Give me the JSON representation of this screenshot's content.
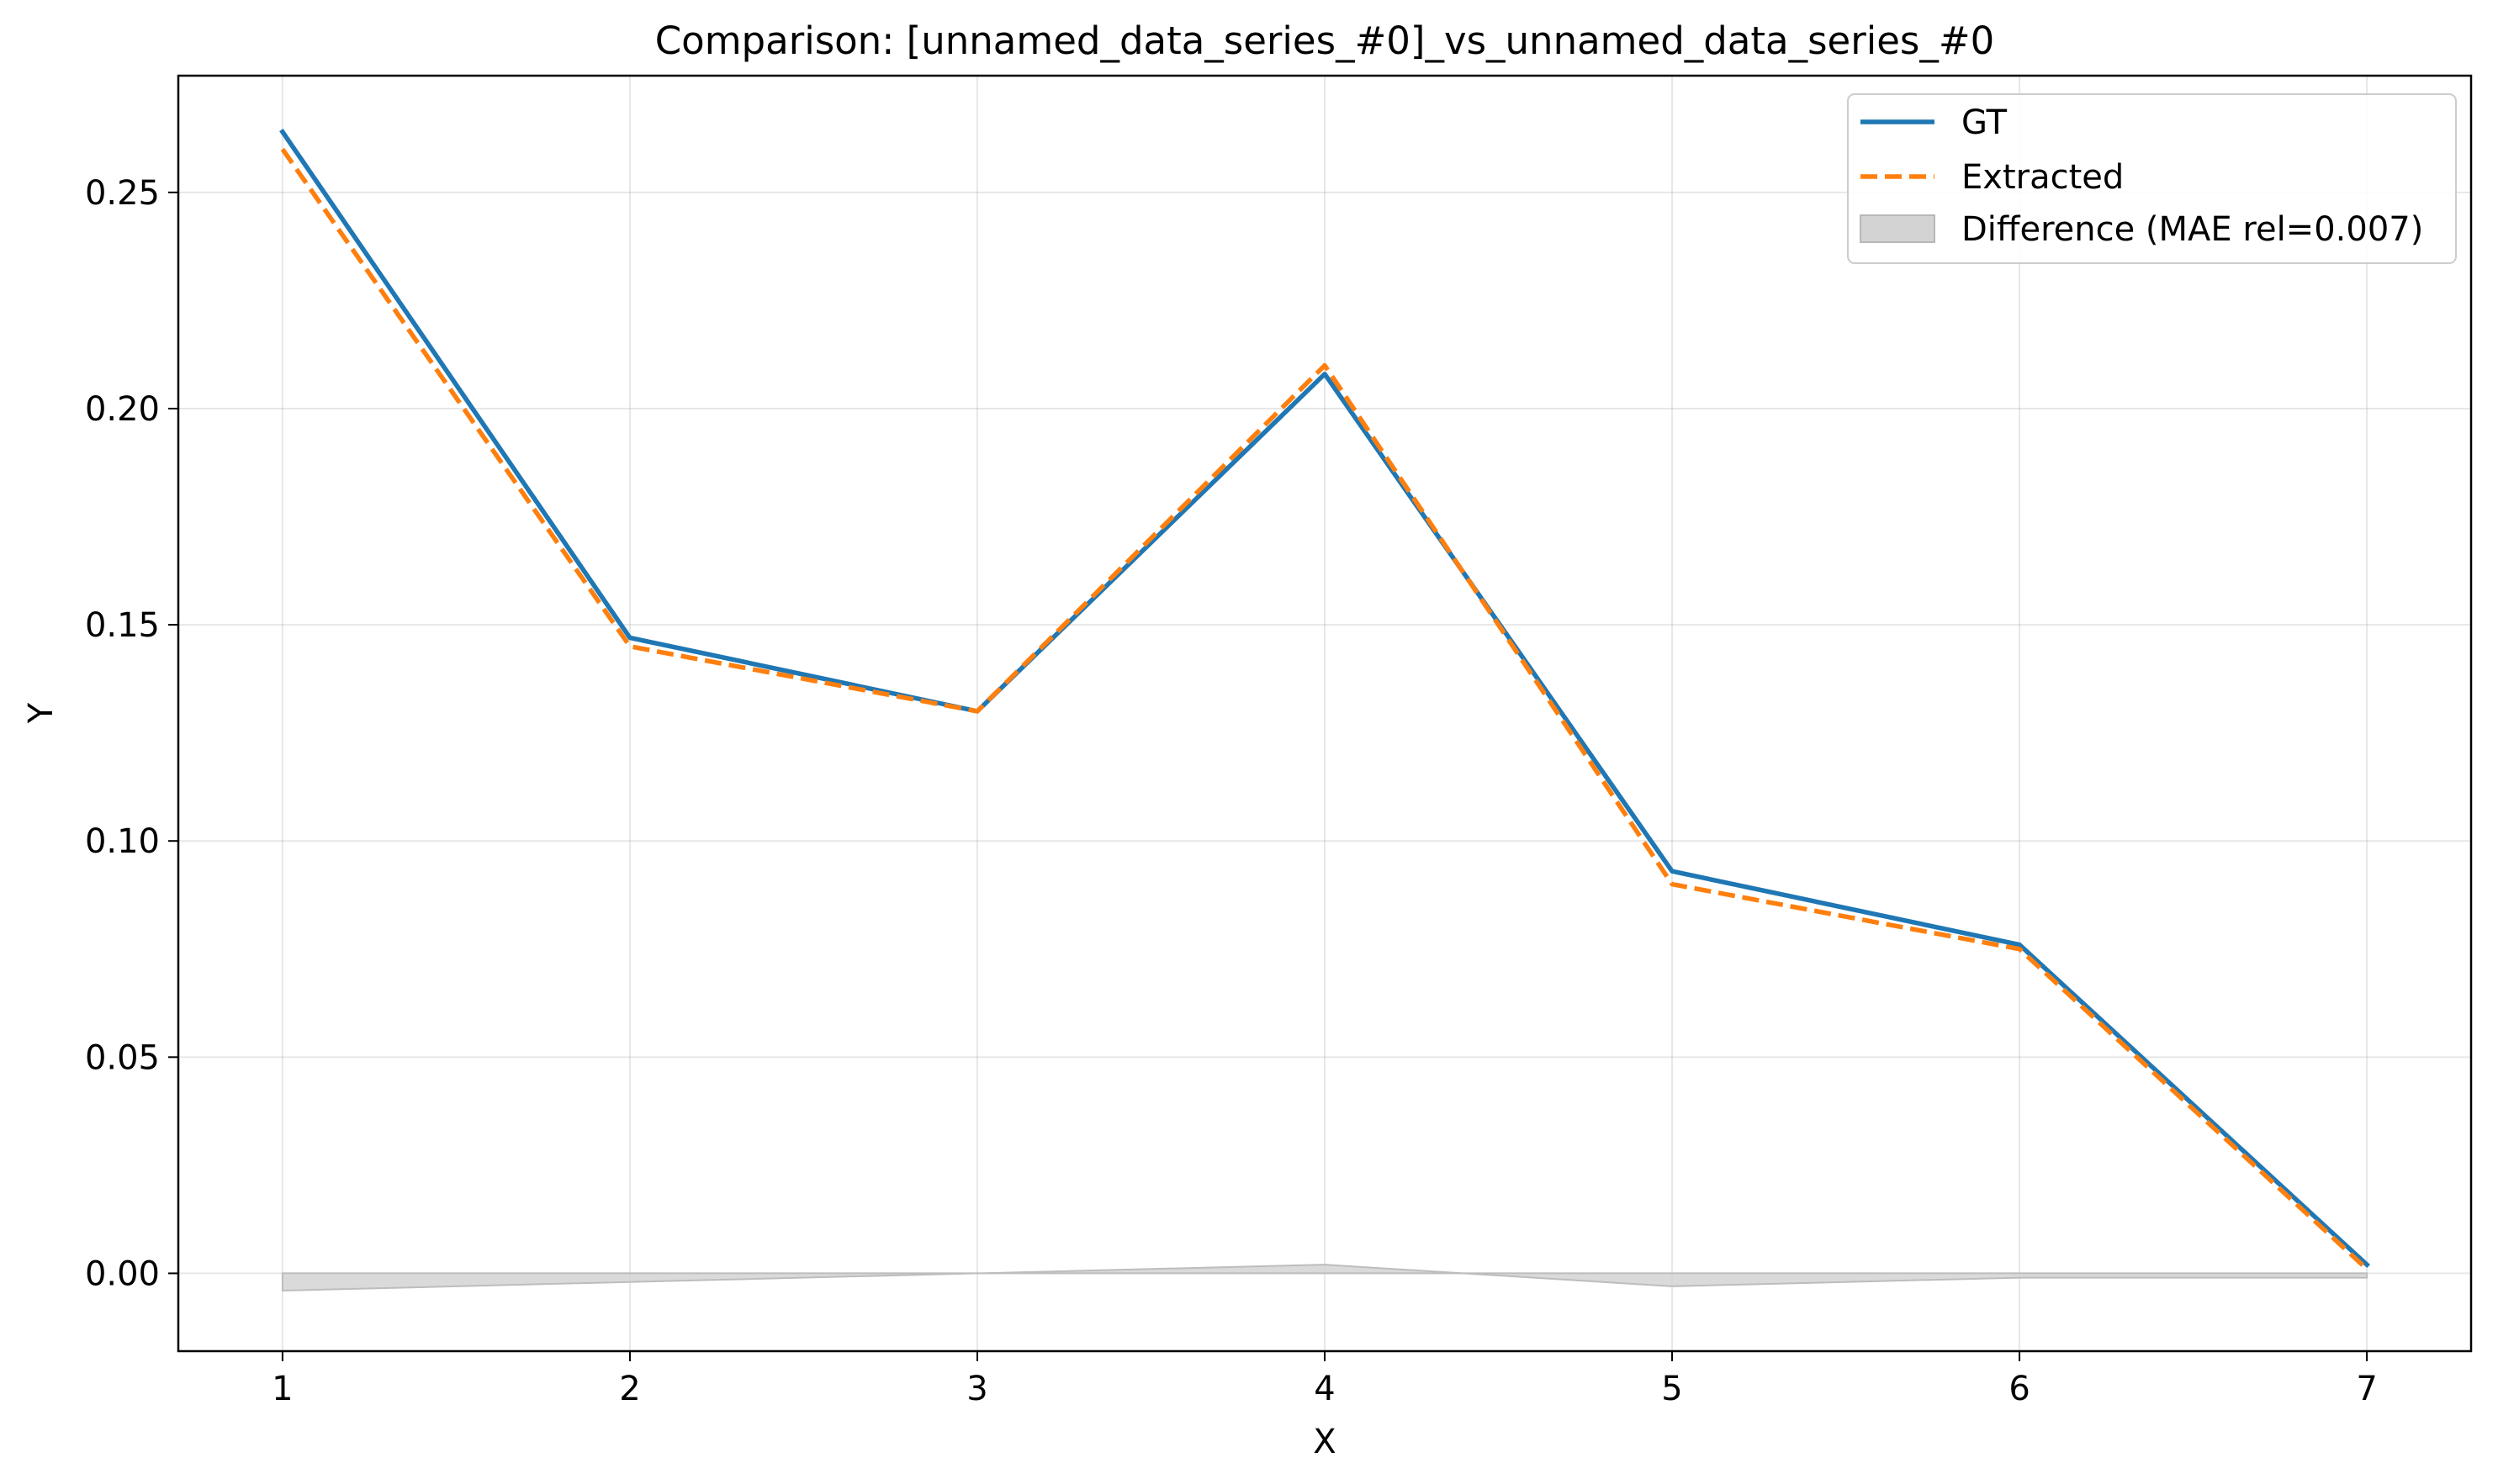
{
  "chart_data": {
    "type": "line",
    "title": "Comparison: [unnamed_data_series_#0]_vs_unnamed_data_series_#0",
    "xlabel": "X",
    "ylabel": "Y",
    "x": [
      1,
      2,
      3,
      4,
      5,
      6,
      7
    ],
    "xlim": [
      0.7,
      7.3
    ],
    "ylim": [
      -0.018,
      0.277
    ],
    "xticks": [
      "1",
      "2",
      "3",
      "4",
      "5",
      "6",
      "7"
    ],
    "yticks": [
      "0.00",
      "0.05",
      "0.10",
      "0.15",
      "0.20",
      "0.25"
    ],
    "grid": true,
    "legend_position": "top-right",
    "series": [
      {
        "name": "GT",
        "style": "solid",
        "color": "#1f77b4",
        "values": [
          0.264,
          0.147,
          0.13,
          0.208,
          0.093,
          0.076,
          0.002
        ]
      },
      {
        "name": "Extracted",
        "style": "dashed",
        "color": "#ff7f0e",
        "values": [
          0.26,
          0.145,
          0.13,
          0.21,
          0.09,
          0.075,
          0.001
        ]
      }
    ],
    "difference": {
      "name": "Difference (MAE rel=0.007)",
      "color": "#d3d3d3",
      "values": [
        -0.004,
        -0.002,
        0.0,
        0.002,
        -0.003,
        -0.001,
        -0.001
      ]
    }
  }
}
